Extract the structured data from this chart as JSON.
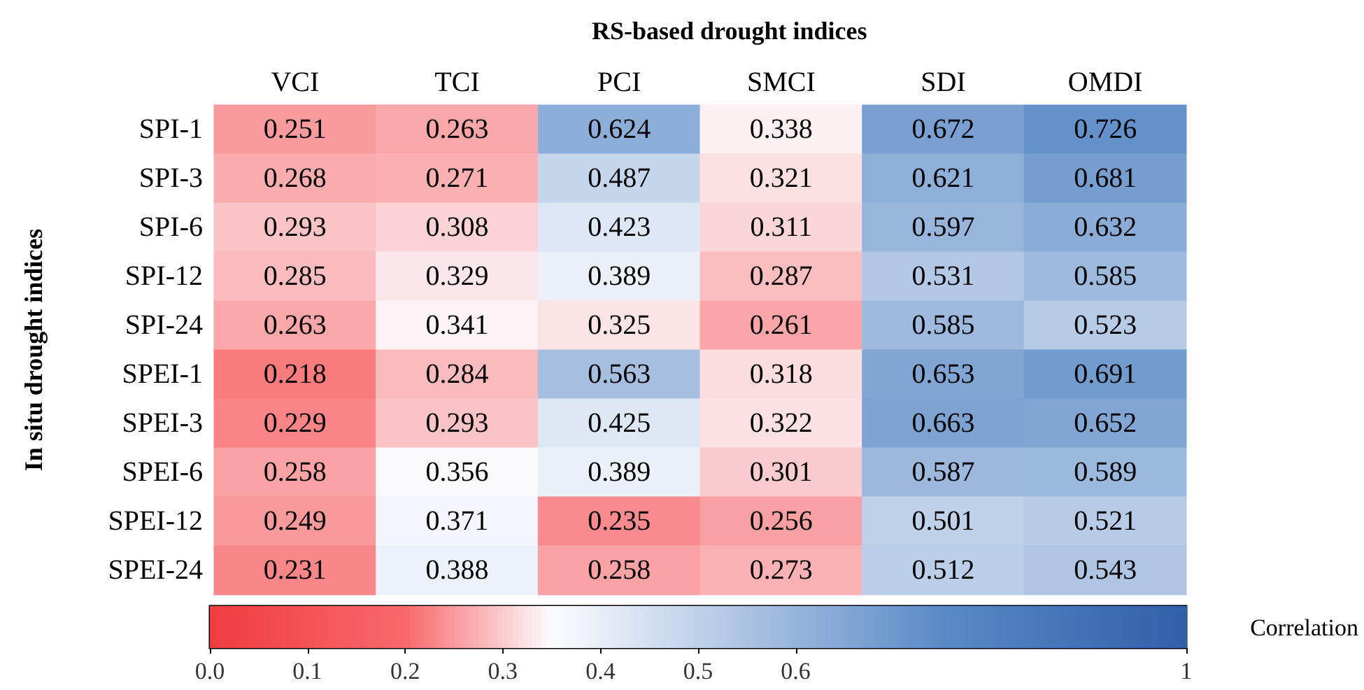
{
  "chart_data": {
    "type": "heatmap",
    "title": "RS-based drought indices",
    "ylabel": "In situ drought indices",
    "clabel": "Correlation",
    "categories": [
      "VCI",
      "TCI",
      "PCI",
      "SMCI",
      "SDI",
      "OMDI"
    ],
    "y_categories": [
      "SPI-1",
      "SPI-3",
      "SPI-6",
      "SPI-12",
      "SPI-24",
      "SPEI-1",
      "SPEI-3",
      "SPEI-6",
      "SPEI-12",
      "SPEI-24"
    ],
    "cells": [
      [
        0.251,
        0.263,
        0.624,
        0.338,
        0.672,
        0.726
      ],
      [
        0.268,
        0.271,
        0.487,
        0.321,
        0.621,
        0.681
      ],
      [
        0.293,
        0.308,
        0.423,
        0.311,
        0.597,
        0.632
      ],
      [
        0.285,
        0.329,
        0.389,
        0.287,
        0.531,
        0.585
      ],
      [
        0.263,
        0.341,
        0.325,
        0.261,
        0.585,
        0.523
      ],
      [
        0.218,
        0.284,
        0.563,
        0.318,
        0.653,
        0.691
      ],
      [
        0.229,
        0.293,
        0.425,
        0.322,
        0.663,
        0.652
      ],
      [
        0.258,
        0.356,
        0.389,
        0.301,
        0.587,
        0.589
      ],
      [
        0.249,
        0.371,
        0.235,
        0.256,
        0.501,
        0.521
      ],
      [
        0.231,
        0.388,
        0.258,
        0.273,
        0.512,
        0.543
      ]
    ],
    "data_labels": true,
    "clim": [
      0,
      1
    ],
    "cticks": [
      {
        "value": 0,
        "label": "0.0"
      },
      0.1,
      0.2,
      0.3,
      0.4,
      0.5,
      0.6,
      1
    ]
  }
}
